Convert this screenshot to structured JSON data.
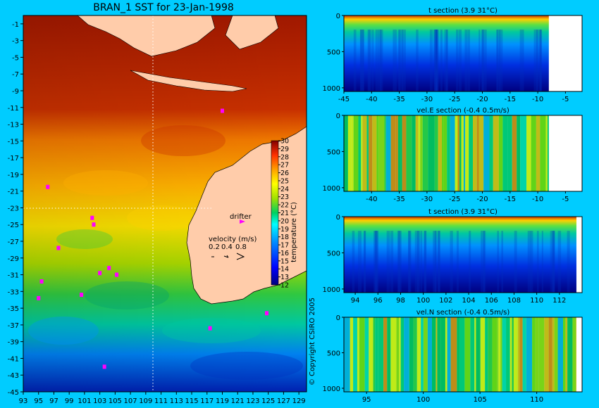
{
  "main_map": {
    "title": "BRAN_1 SST for 23-Jan-1998",
    "copyright": "© Copyright CSIRO 2005",
    "chart_data": {
      "type": "heatmap",
      "title": "BRAN_1 SST for 23-Jan-1998",
      "xlim": [
        93,
        130
      ],
      "ylim": [
        -45,
        0
      ],
      "x_ticks": [
        "93",
        "95",
        "97",
        "99",
        "101",
        "103",
        "105",
        "107",
        "109",
        "111",
        "113",
        "115",
        "117",
        "119",
        "121",
        "123",
        "125",
        "127",
        "129"
      ],
      "y_ticks": [
        "-1",
        "-3",
        "-5",
        "-7",
        "-9",
        "-11",
        "-13",
        "-15",
        "-17",
        "-19",
        "-21",
        "-23",
        "-25",
        "-27",
        "-29",
        "-31",
        "-33",
        "-35",
        "-37",
        "-39",
        "-41",
        "-43",
        "-45"
      ],
      "colorbar": {
        "label": "temperature (°C)",
        "ticks": [
          "12",
          "13",
          "14",
          "15",
          "16",
          "17",
          "18",
          "19",
          "20",
          "21",
          "22",
          "23",
          "24",
          "25",
          "26",
          "27",
          "28",
          "29",
          "30"
        ],
        "range": [
          12,
          30
        ]
      },
      "section_lines": {
        "lon": 110,
        "lat": -23
      },
      "legend": {
        "drifter_label": "drifter",
        "velocity_label": "velocity (m/s)",
        "velocity_scale": [
          "0.2",
          "0.4",
          "0.8"
        ]
      },
      "drifters": [
        {
          "lon": 119.0,
          "lat": -11.4
        },
        {
          "lon": 96.2,
          "lat": -20.5
        },
        {
          "lon": 102.0,
          "lat": -24.2
        },
        {
          "lon": 102.2,
          "lat": -25.0
        },
        {
          "lon": 97.6,
          "lat": -27.8
        },
        {
          "lon": 104.2,
          "lat": -30.2
        },
        {
          "lon": 103.0,
          "lat": -30.8
        },
        {
          "lon": 105.2,
          "lat": -31.0
        },
        {
          "lon": 95.4,
          "lat": -31.8
        },
        {
          "lon": 100.6,
          "lat": -33.4
        },
        {
          "lon": 124.8,
          "lat": -35.6
        },
        {
          "lon": 117.4,
          "lat": -37.4
        },
        {
          "lon": 95.0,
          "lat": -33.8
        },
        {
          "lon": 103.6,
          "lat": -42.0
        }
      ]
    }
  },
  "sections": [
    {
      "title": "t section (3.9      31°C)",
      "chart_data": {
        "type": "heatmap",
        "title": "t section (3.9      31°C)",
        "variable": "temperature",
        "xlim": [
          -45,
          -2
        ],
        "ylim": [
          1050,
          0
        ],
        "x_ticks": [
          "-45",
          "-40",
          "-35",
          "-30",
          "-25",
          "-20",
          "-15",
          "-10",
          "-5"
        ],
        "y_ticks": [
          "0",
          "500",
          "1000"
        ],
        "land_from": -8
      }
    },
    {
      "title": "vel.E section (-0.4      0.5m/s)",
      "chart_data": {
        "type": "heatmap",
        "title": "vel.E section (-0.4      0.5m/s)",
        "variable": "eastward velocity",
        "xlim": [
          -45,
          -2
        ],
        "ylim": [
          1050,
          0
        ],
        "x_ticks": [
          "-40",
          "-35",
          "-30",
          "-25",
          "-20",
          "-15",
          "-10",
          "-5"
        ],
        "y_ticks": [
          "0",
          "500",
          "1000"
        ],
        "land_from": -8
      }
    },
    {
      "title": "t section (3.9      31°C)",
      "chart_data": {
        "type": "heatmap",
        "title": "t section (3.9      31°C)",
        "variable": "temperature",
        "xlim": [
          93,
          114
        ],
        "ylim": [
          1050,
          0
        ],
        "x_ticks": [
          "94",
          "96",
          "98",
          "100",
          "102",
          "104",
          "106",
          "108",
          "110",
          "112"
        ],
        "y_ticks": [
          "0",
          "500",
          "1000"
        ],
        "land_from": 113.5
      }
    },
    {
      "title": "vel.N section (-0.4      0.5m/s)",
      "chart_data": {
        "type": "heatmap",
        "title": "vel.N section (-0.4      0.5m/s)",
        "variable": "northward velocity",
        "xlim": [
          93,
          114
        ],
        "ylim": [
          1050,
          0
        ],
        "x_ticks": [
          "95",
          "100",
          "105",
          "110"
        ],
        "y_ticks": [
          "0",
          "500",
          "1000"
        ],
        "land_from": 113.5
      }
    }
  ]
}
